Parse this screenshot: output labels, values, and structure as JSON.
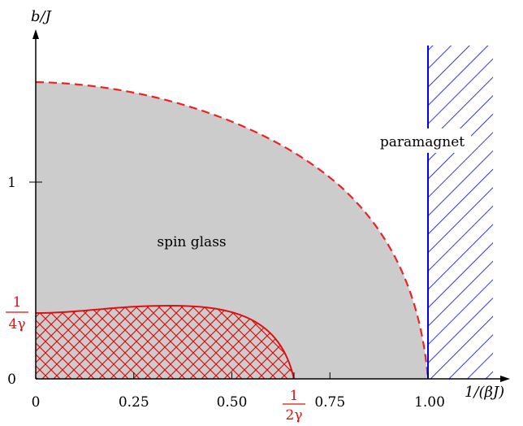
{
  "axes": {
    "x_label": "1/(βJ)",
    "y_label": "b/J",
    "x_ticks": [
      {
        "value": 0,
        "label": "0"
      },
      {
        "value": 0.25,
        "label": "0.25"
      },
      {
        "value": 0.5,
        "label": "0.50"
      },
      {
        "value": 0.75,
        "label": "0.75"
      },
      {
        "value": 1.0,
        "label": "1.00"
      }
    ],
    "y_ticks": [
      {
        "value": 0,
        "label": "0"
      },
      {
        "value": 1,
        "label": "1"
      }
    ]
  },
  "special_ticks": {
    "x": {
      "value": 0.6667,
      "numerator": "1",
      "denominator": "2γ"
    },
    "y": {
      "value": 0.333,
      "numerator": "1",
      "denominator": "4γ"
    }
  },
  "regions": {
    "spin_glass": {
      "label": "spin glass",
      "fill": "#cccccc"
    },
    "paramagnet": {
      "label": "paramagnet",
      "hatch_color": "#0000ee",
      "x_start": 1.0
    },
    "hatched_low": {
      "hatch_color": "#dd1111"
    }
  },
  "boundary": {
    "style": "dashed",
    "color": "#ee2222",
    "y_at_zero": 1.52,
    "x_at_zero": 1.0
  },
  "colors": {
    "axis": "#000000",
    "red": "#dd1111",
    "blue": "#0000ee"
  }
}
